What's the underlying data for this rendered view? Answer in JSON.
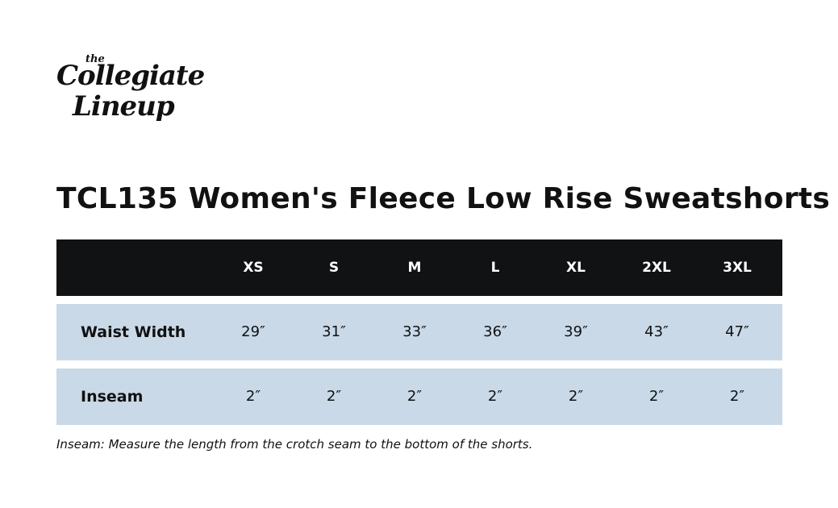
{
  "logo": {
    "small": "the",
    "line1": "Collegiate",
    "line2": "Lineup"
  },
  "title": "TCL135 Women's Fleece Low Rise Sweatshorts",
  "table": {
    "columns": [
      "XS",
      "S",
      "M",
      "L",
      "XL",
      "2XL",
      "3XL"
    ],
    "rows": [
      {
        "label": "Waist Width",
        "values": [
          "29″",
          "31″",
          "33″",
          "36″",
          "39″",
          "43″",
          "47″"
        ]
      },
      {
        "label": "Inseam",
        "values": [
          "2″",
          "2″",
          "2″",
          "2″",
          "2″",
          "2″",
          "2″"
        ]
      }
    ]
  },
  "note": "Inseam: Measure the length from the crotch seam to the bottom of the shorts."
}
